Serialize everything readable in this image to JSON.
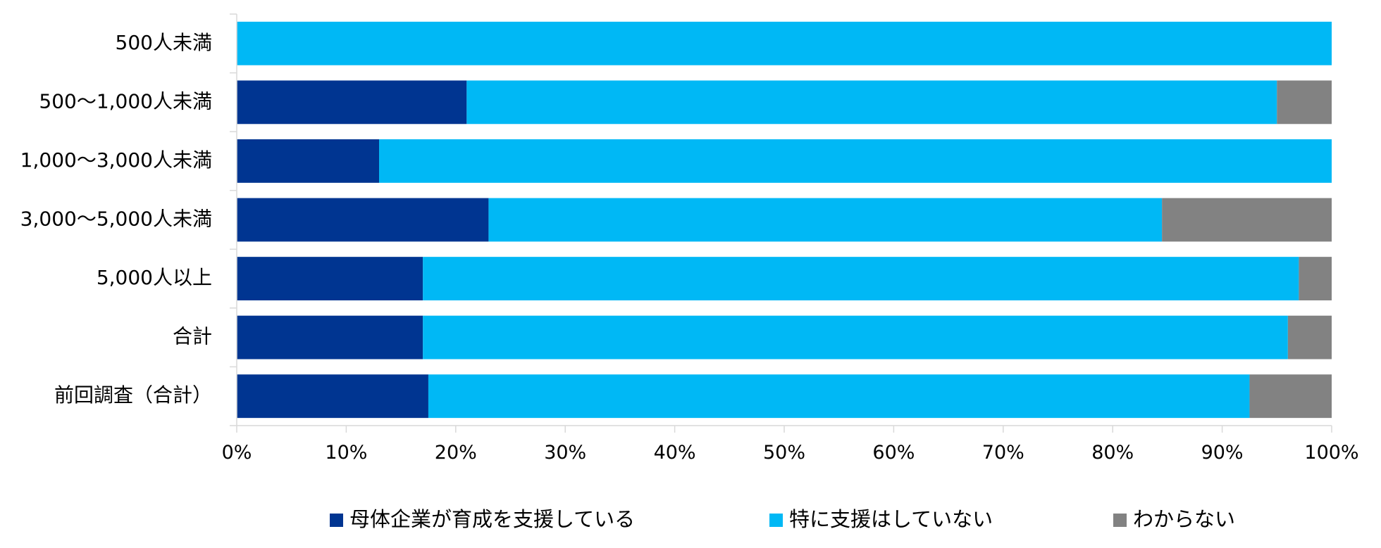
{
  "chart_data": {
    "type": "bar",
    "orientation": "horizontal",
    "stacked": "percent",
    "title": "",
    "xlabel": "",
    "ylabel": "",
    "categories": [
      "500人未満",
      "500～1,000人未満",
      "1,000～3,000人未満",
      "3,000～5,000人未満",
      "5,000人以上",
      "合計",
      "前回調査（合計）"
    ],
    "series": [
      {
        "name": "母体企業が育成を支援している",
        "color": "#003591",
        "values": [
          0,
          21,
          13,
          23,
          17,
          17,
          17.5
        ]
      },
      {
        "name": "特に支援はしていない",
        "color": "#00b8f5",
        "values": [
          100,
          74,
          87,
          61.5,
          80,
          79,
          75
        ]
      },
      {
        "name": "わからない",
        "color": "#828282",
        "values": [
          0,
          5,
          0,
          15.5,
          3,
          4,
          7.5
        ]
      }
    ],
    "xlim": [
      0,
      100
    ],
    "xticks": [
      0,
      10,
      20,
      30,
      40,
      50,
      60,
      70,
      80,
      90,
      100
    ],
    "xtick_labels": [
      "0%",
      "10%",
      "20%",
      "30%",
      "40%",
      "50%",
      "60%",
      "70%",
      "80%",
      "90%",
      "100%"
    ],
    "grid": false,
    "legend_position": "bottom"
  }
}
